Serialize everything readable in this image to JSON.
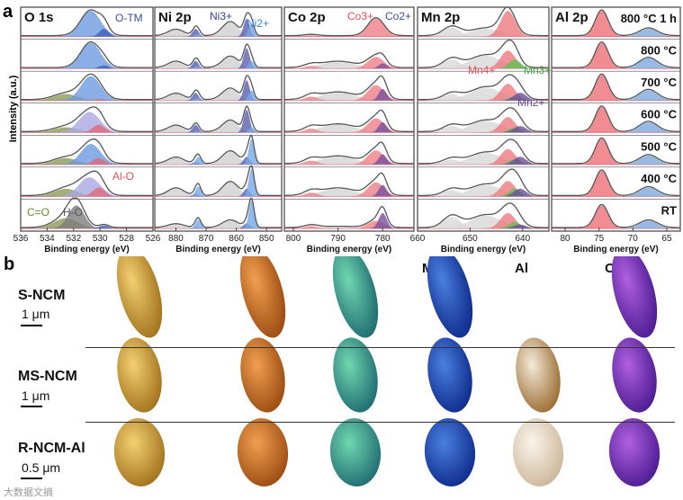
{
  "figure": {
    "panel_a": "a",
    "panel_b": "b",
    "ylabel": "Intensity (a.u.)"
  },
  "chart_data": [
    {
      "type": "line",
      "title": "O 1s",
      "xlabel": "Binding energy (eV)",
      "xlim": [
        536,
        526
      ],
      "ticks": [
        "536",
        "534",
        "532",
        "530",
        "528",
        "526"
      ],
      "annotations": [
        "O-TM",
        "Al-O",
        "C=O",
        "H-O"
      ],
      "components": [
        {
          "name": "C=O",
          "center": 532.6,
          "sigma": 0.9,
          "color": "#8d9a55"
        },
        {
          "name": "H-O",
          "center": 531.8,
          "sigma": 0.6,
          "color": "#7d7d7d"
        },
        {
          "name": "O-TM",
          "center": 530.7,
          "sigma": 0.75,
          "color": "#6b9be0"
        },
        {
          "name": "lattice",
          "center": 530.8,
          "sigma": 0.8,
          "color": "#aaa8e2"
        },
        {
          "name": "Al-O",
          "center": 530.1,
          "sigma": 0.45,
          "color": "#e0687a"
        },
        {
          "name": "low",
          "center": 529.7,
          "sigma": 0.35,
          "color": "#3f5fb8"
        }
      ],
      "rows": [
        [
          0,
          0,
          1,
          0,
          0,
          0.3
        ],
        [
          0,
          0,
          1,
          0,
          0,
          0.12
        ],
        [
          0.25,
          0,
          0.95,
          0,
          0.05,
          0
        ],
        [
          0.2,
          0,
          0,
          0.8,
          0.3,
          0
        ],
        [
          0.25,
          0,
          0.8,
          0,
          0.25,
          0
        ],
        [
          0.3,
          0,
          0,
          0.75,
          0.35,
          0
        ],
        [
          0.4,
          0.9,
          0,
          0,
          0,
          0.12
        ]
      ]
    },
    {
      "type": "line",
      "title": "Ni 2p",
      "xlabel": "Binding energy (eV)",
      "xlim": [
        887,
        845
      ],
      "ticks": [
        "880",
        "870",
        "860",
        "850"
      ],
      "annotations": [
        "Ni3+",
        "Ni2+"
      ],
      "components": [
        {
          "name": "sat1",
          "center": 880,
          "sigma": 2.6,
          "color": "#cfcfcf"
        },
        {
          "name": "sat2",
          "center": 862,
          "sigma": 2.6,
          "color": "#cfcfcf"
        },
        {
          "name": "Ni3+ 2p1/2",
          "center": 873.5,
          "sigma": 1.0,
          "color": "#5b5fae"
        },
        {
          "name": "Ni3+ 2p3/2",
          "center": 856.6,
          "sigma": 1.0,
          "color": "#5b5fae"
        },
        {
          "name": "Ni2+ 2p1/2",
          "center": 872.6,
          "sigma": 0.9,
          "color": "#74a9e6"
        },
        {
          "name": "Ni2+ 2p3/2",
          "center": 855,
          "sigma": 0.9,
          "color": "#74a9e6"
        }
      ],
      "rows": [
        [
          0.25,
          0.55,
          0.3,
          0.7,
          0.1,
          0.5
        ],
        [
          0.25,
          0.45,
          0.3,
          0.8,
          0.1,
          0.3
        ],
        [
          0.25,
          0.45,
          0.3,
          0.8,
          0.1,
          0.4
        ],
        [
          0.25,
          0.45,
          0.3,
          0.9,
          0.05,
          0.2
        ],
        [
          0.25,
          0.5,
          0.1,
          0.3,
          0.3,
          1
        ],
        [
          0.3,
          0.55,
          0.1,
          0.3,
          0.4,
          1.1
        ],
        [
          0.15,
          0.3,
          0.05,
          0.2,
          0.35,
          1.1
        ]
      ]
    },
    {
      "type": "line",
      "title": "Co 2p",
      "xlabel": "Binding energy (eV)",
      "xlim": [
        802,
        773
      ],
      "ticks": [
        "800",
        "790",
        "780"
      ],
      "annotations": [
        "Co3+",
        "Co2+"
      ],
      "components": [
        {
          "name": "sat",
          "center": 790,
          "sigma": 4,
          "color": "#d4d4d4"
        },
        {
          "name": "2p1/2",
          "center": 796,
          "sigma": 1.5,
          "color": "#e98a92"
        },
        {
          "name": "Co3+",
          "center": 781.5,
          "sigma": 1.8,
          "color": "#ee7f86"
        },
        {
          "name": "Co2+",
          "center": 780,
          "sigma": 0.9,
          "color": "#7a4f9a"
        }
      ],
      "rows": [
        [
          0,
          0.05,
          0.7,
          0
        ],
        [
          0.25,
          0.1,
          0.45,
          0.2
        ],
        [
          0.3,
          0.15,
          0.6,
          0.45
        ],
        [
          0.3,
          0.15,
          0.55,
          0.4
        ],
        [
          0.3,
          0.15,
          0.55,
          0.4
        ],
        [
          0.3,
          0.15,
          0.55,
          0.45
        ],
        [
          0.05,
          0.1,
          0.3,
          0.6
        ]
      ]
    },
    {
      "type": "line",
      "title": "Mn 2p",
      "xlabel": "Binding energy (eV)",
      "xlim": [
        660,
        635
      ],
      "ticks": [
        "660",
        "650",
        "640"
      ],
      "annotations": [
        "Mn4+",
        "Mn3+",
        "Mn2+"
      ],
      "components": [
        {
          "name": "2p1/2",
          "center": 653.5,
          "sigma": 1.6,
          "color": "#d8d8d8"
        },
        {
          "name": "sat",
          "center": 647,
          "sigma": 3,
          "color": "#d8d8d8"
        },
        {
          "name": "Mn4+",
          "center": 642.8,
          "sigma": 1.4,
          "color": "#ee7a82"
        },
        {
          "name": "Mn3+",
          "center": 641.5,
          "sigma": 1.1,
          "color": "#5ec050"
        },
        {
          "name": "Mn2+",
          "center": 640.5,
          "sigma": 1.2,
          "color": "#6a4f9a"
        }
      ],
      "rows": [
        [
          0.35,
          0.3,
          1,
          0,
          0
        ],
        [
          0.35,
          0.5,
          0.7,
          0.35,
          0
        ],
        [
          0.25,
          0.5,
          0.65,
          0.15,
          0.3
        ],
        [
          0.25,
          0.45,
          0.6,
          0.2,
          0.25
        ],
        [
          0.2,
          0.45,
          0.6,
          0.2,
          0.3
        ],
        [
          0.25,
          0.45,
          0.6,
          0.3,
          0.3
        ],
        [
          0.45,
          0.5,
          0.6,
          0.25,
          0.15
        ]
      ]
    },
    {
      "type": "line",
      "title": "Al 2p",
      "xlabel": "Binding energy (eV)",
      "xlim": [
        82,
        63
      ],
      "ticks": [
        "80",
        "75",
        "70",
        "65"
      ],
      "series": [
        "800 °C 1 h",
        "800 °C",
        "700 °C",
        "600 °C",
        "500 °C",
        "400 °C",
        "RT"
      ],
      "components": [
        {
          "name": "Al",
          "center": 74.6,
          "sigma": 0.95,
          "color": "#ee6f78"
        },
        {
          "name": "Ni 3p",
          "center": 67.7,
          "sigma": 1.3,
          "color": "#7ea8dc"
        }
      ],
      "rows": [
        [
          1,
          0.3
        ],
        [
          1,
          0.4
        ],
        [
          1,
          0.4
        ],
        [
          1,
          0.4
        ],
        [
          1,
          0.35
        ],
        [
          1,
          0.35
        ],
        [
          0.9,
          0.3
        ]
      ]
    }
  ],
  "panel_b": {
    "columns": [
      "Ni",
      "Co",
      "Mn",
      "Al",
      "O"
    ],
    "rows": [
      {
        "label": "S-NCM",
        "scale": "1 μm"
      },
      {
        "label": "MS-NCM",
        "scale": "1 μm"
      },
      {
        "label": "R-NCM-Al",
        "scale": "0.5 μm"
      }
    ]
  },
  "watermark": "大数据文摘"
}
